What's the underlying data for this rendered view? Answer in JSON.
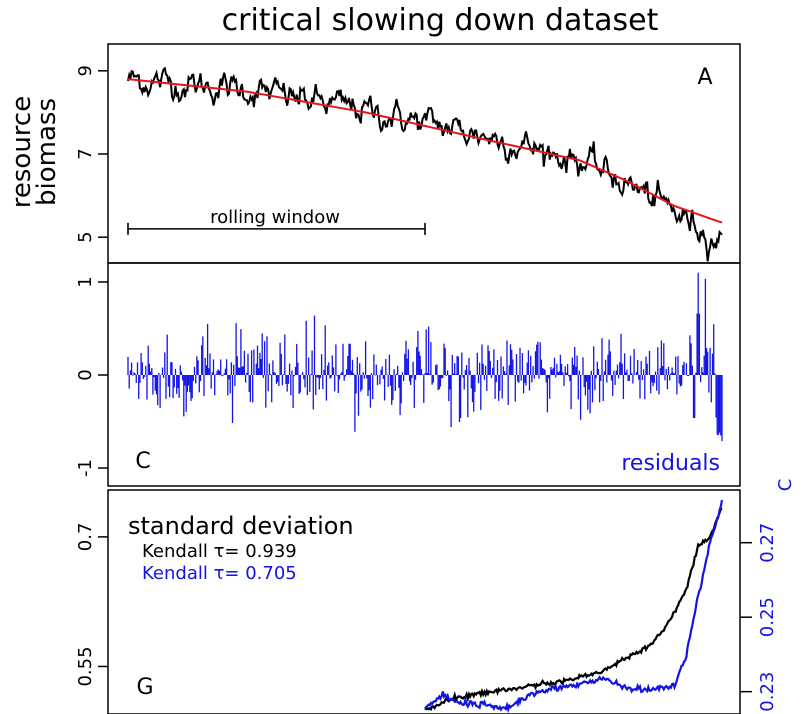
{
  "figure_title": "critical slowing down dataset",
  "chart_data": [
    {
      "panel": "A",
      "type": "line",
      "title": "critical slowing down dataset",
      "ylabel_line1": "resource",
      "ylabel_line2": "biomass",
      "xlabel": "",
      "xlim": [
        0,
        500
      ],
      "ylim": [
        4.5,
        9.5
      ],
      "yticks": [
        5,
        7,
        9
      ],
      "yticklabels": [
        "5",
        "7",
        "9"
      ],
      "annotation": "rolling window",
      "rolling_window": {
        "x_start": 0,
        "x_end": 250,
        "y": 5.2
      },
      "series": [
        {
          "name": "biomass",
          "color": "#000000",
          "trend_knots_x": [
            0,
            100,
            200,
            300,
            380,
            420,
            460,
            500
          ],
          "trend_knots_y": [
            8.8,
            8.55,
            8.05,
            7.45,
            6.85,
            6.3,
            5.6,
            4.9
          ],
          "noise_sd": 0.18
        },
        {
          "name": "trend",
          "color": "#e8141c",
          "knots_x": [
            0,
            100,
            200,
            300,
            380,
            420,
            460,
            500
          ],
          "knots_y": [
            8.8,
            8.5,
            8.0,
            7.35,
            6.85,
            6.35,
            5.75,
            5.35
          ]
        }
      ]
    },
    {
      "panel": "C",
      "type": "bar",
      "xlim": [
        0,
        500
      ],
      "ylim": [
        -1.15,
        1.15
      ],
      "yticks": [
        -1,
        0,
        1
      ],
      "yticklabels": [
        "-1",
        "0",
        "1"
      ],
      "annotation": "residuals",
      "series": [
        {
          "name": "residuals",
          "color": "#1414e6",
          "amplitude": 0.32,
          "spike_at": 480,
          "spike_value": 1.1,
          "tail_negative": -0.75
        }
      ]
    },
    {
      "panel": "G",
      "type": "line",
      "title": "standard deviation",
      "xlim": [
        0,
        500
      ],
      "ylim_left": [
        0.495,
        0.745
      ],
      "yticks_left": [
        0.55,
        0.7
      ],
      "yticklabels_left": [
        "0.55",
        "0.7"
      ],
      "ylim_right": [
        0.224,
        0.282
      ],
      "yticks_right": [
        0.23,
        0.25,
        0.27
      ],
      "yticklabels_right": [
        "0.23",
        "0.25",
        "0.27"
      ],
      "series": [
        {
          "name": "Kendall τ= 0.939",
          "color": "#000000",
          "axis": "left",
          "x": [
            250,
            275,
            300,
            325,
            350,
            375,
            400,
            420,
            440,
            455,
            470,
            480,
            490,
            500
          ],
          "y": [
            0.5,
            0.513,
            0.52,
            0.525,
            0.53,
            0.535,
            0.545,
            0.56,
            0.575,
            0.6,
            0.64,
            0.69,
            0.7,
            0.735
          ]
        },
        {
          "name": "Kendall τ= 0.705",
          "color": "#1414e6",
          "axis": "right",
          "x": [
            250,
            265,
            280,
            300,
            320,
            340,
            360,
            380,
            400,
            420,
            440,
            460,
            470,
            480,
            490,
            500
          ],
          "y": [
            0.2255,
            0.229,
            0.227,
            0.2265,
            0.2255,
            0.2295,
            0.231,
            0.232,
            0.2335,
            0.231,
            0.2305,
            0.2315,
            0.24,
            0.256,
            0.27,
            0.281
          ]
        }
      ],
      "legend_title": "standard deviation",
      "legend_lines": [
        "Kendall τ= 0.939",
        "Kendall τ= 0.705"
      ],
      "right_axis_partial_label": "C"
    }
  ]
}
